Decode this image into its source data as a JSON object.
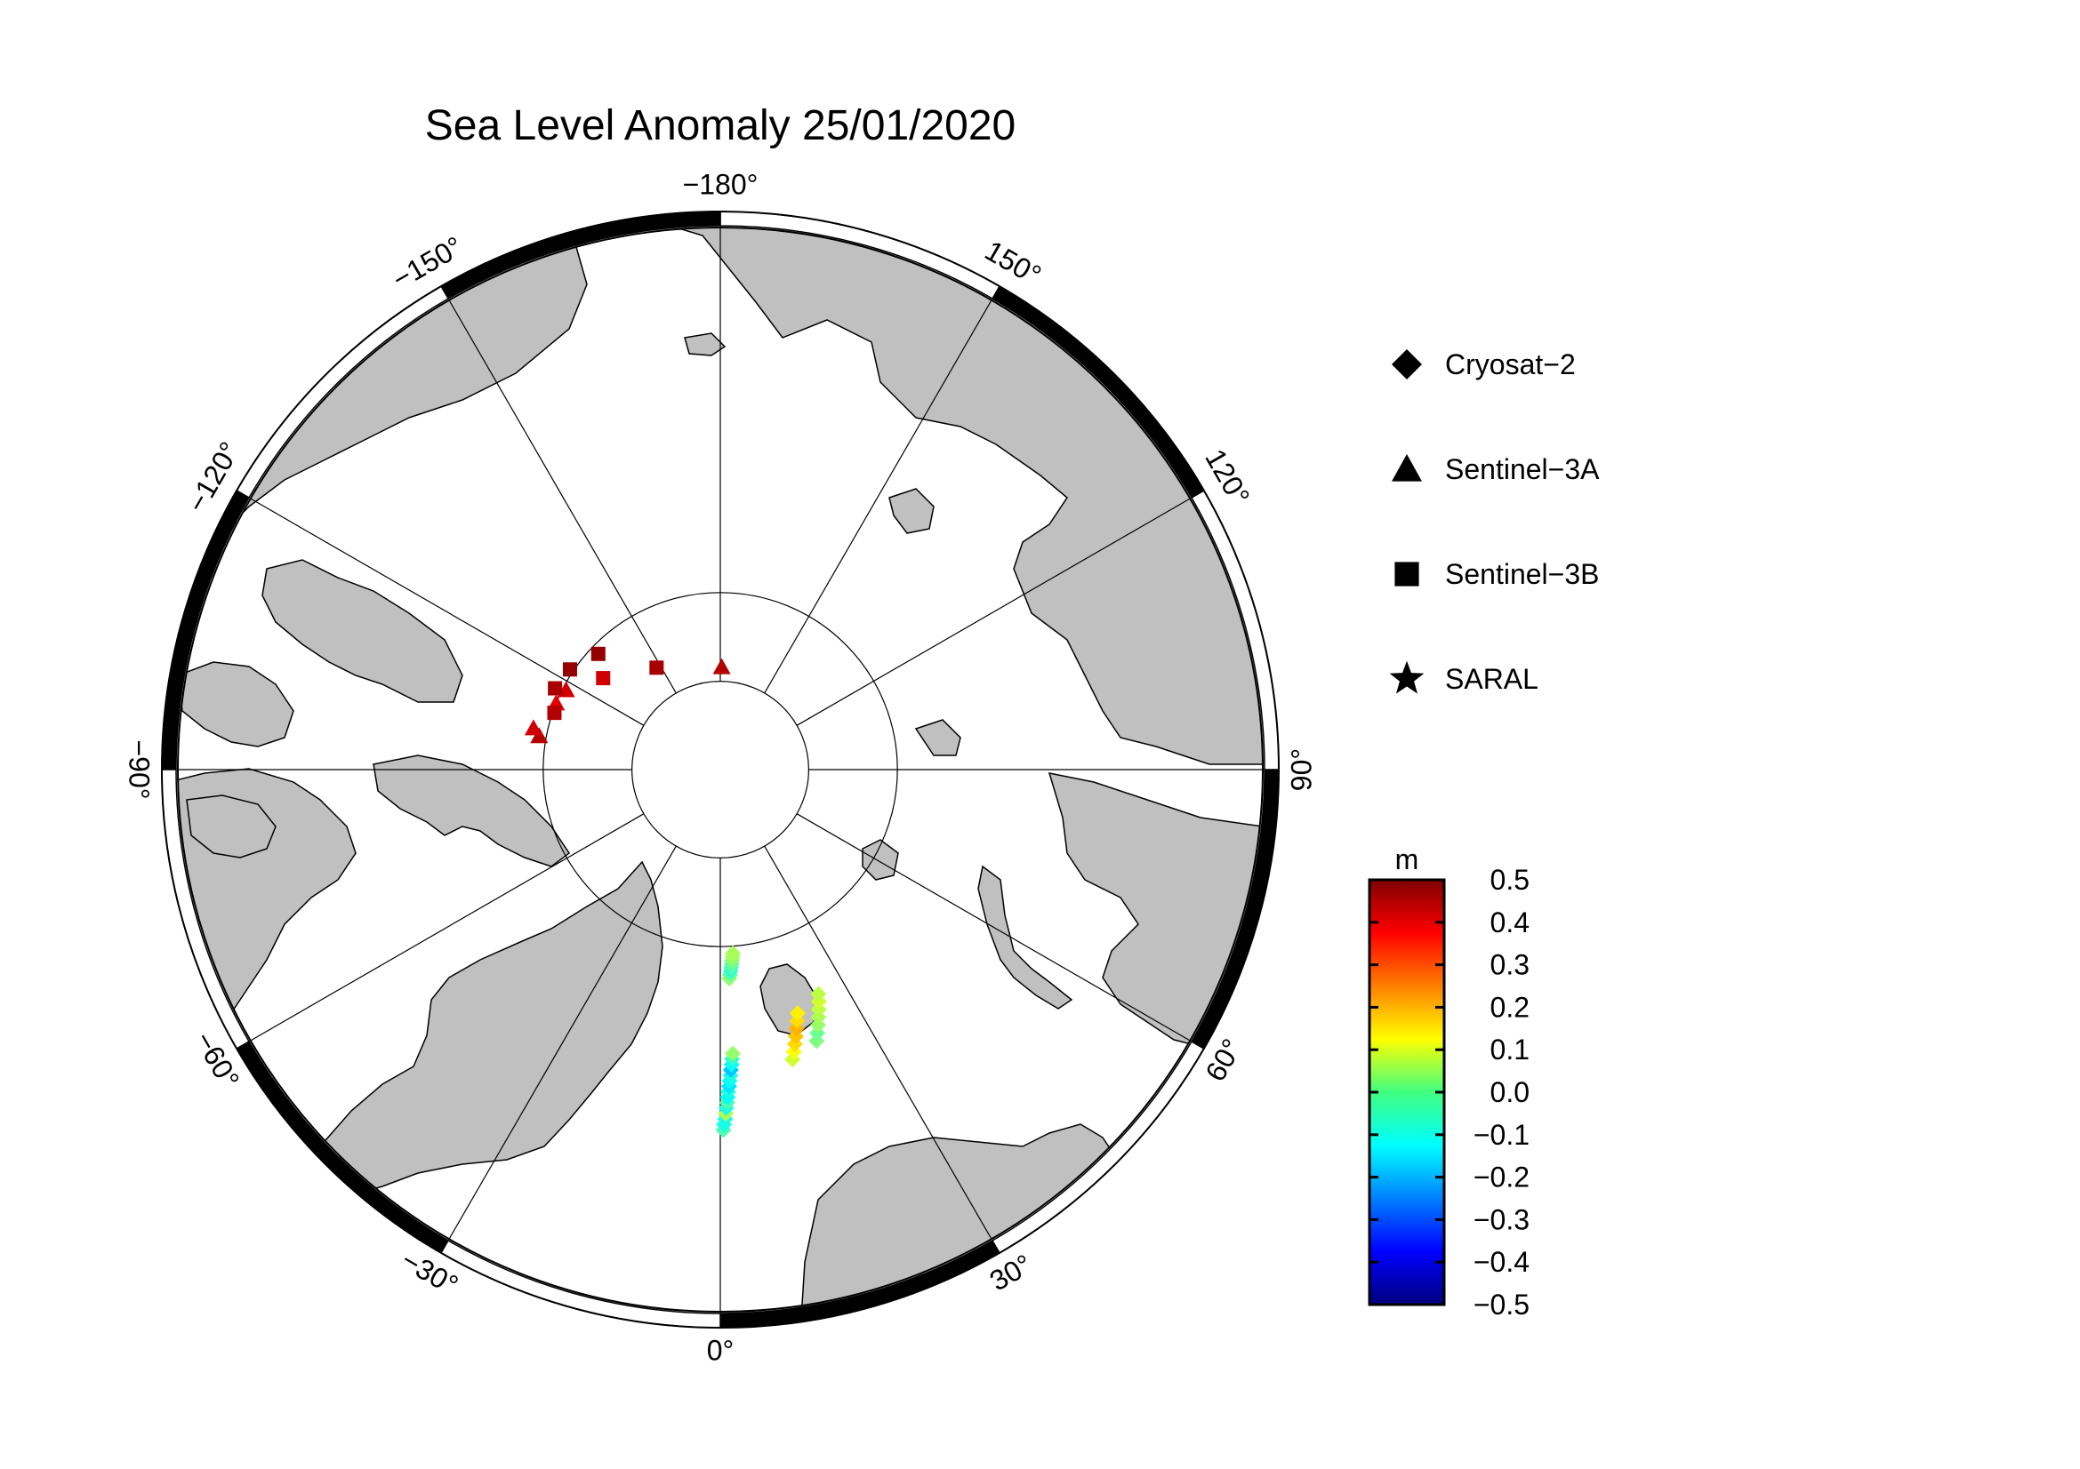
{
  "title": "Sea Level Anomaly 25/01/2020",
  "colors": {
    "land": "#c0c0c0",
    "coast": "#000000",
    "graticule": "#000000",
    "frame_dark": "#000000",
    "frame_light": "#ffffff"
  },
  "map": {
    "projection": "north-polar-stereographic",
    "longitude_labels": [
      {
        "lon": 0,
        "text": "0°"
      },
      {
        "lon": 30,
        "text": "30°"
      },
      {
        "lon": 60,
        "text": "60°"
      },
      {
        "lon": 90,
        "text": "90°"
      },
      {
        "lon": 120,
        "text": "120°"
      },
      {
        "lon": 150,
        "text": "150°"
      },
      {
        "lon": 180,
        "text": "−180°"
      },
      {
        "lon": -150,
        "text": "−150°"
      },
      {
        "lon": -120,
        "text": "−120°"
      },
      {
        "lon": -90,
        "text": "−90°"
      },
      {
        "lon": -60,
        "text": "−60°"
      },
      {
        "lon": -30,
        "text": "−30°"
      }
    ],
    "latitude_circles": [
      80,
      85
    ]
  },
  "legend": {
    "items": [
      {
        "symbol": "diamond-icon",
        "label": "Cryosat−2"
      },
      {
        "symbol": "triangle-icon",
        "label": "Sentinel−3A"
      },
      {
        "symbol": "square-icon",
        "label": "Sentinel−3B"
      },
      {
        "symbol": "star-icon",
        "label": "SARAL"
      }
    ]
  },
  "colorbar": {
    "unit": "m",
    "min": -0.5,
    "max": 0.5,
    "tick_labels": [
      "0.5",
      "0.4",
      "0.3",
      "0.2",
      "0.1",
      "0.0",
      "−0.1",
      "−0.2",
      "−0.3",
      "−0.4",
      "−0.5"
    ],
    "colormap": "jet"
  },
  "chart_data": {
    "type": "scatter",
    "value_unit": "m",
    "series": [
      {
        "name": "Cryosat−2",
        "marker": "diamond",
        "tracks": [
          {
            "lon": [
              0.5,
              0.6,
              0.8,
              0.9,
              1.0,
              1.2,
              1.3,
              1.4,
              1.6,
              1.7,
              1.9,
              2.0,
              2.2,
              2.3,
              2.5
            ],
            "lat": [
              69.8,
              70.1,
              70.4,
              70.7,
              71.0,
              71.3,
              71.6,
              71.9,
              72.2,
              72.5,
              72.8,
              73.1,
              73.4,
              73.7,
              74.0
            ],
            "sla": [
              -0.05,
              -0.1,
              -0.1,
              0.05,
              -0.1,
              -0.05,
              -0.12,
              -0.1,
              -0.15,
              -0.12,
              -0.1,
              -0.18,
              -0.12,
              -0.08,
              0.02
            ]
          },
          {
            "lon": [
              2.5,
              2.7,
              2.9,
              3.1,
              3.3,
              3.5,
              3.7,
              3.9
            ],
            "lat": [
              78.2,
              78.4,
              78.6,
              78.8,
              79.0,
              79.2,
              79.4,
              79.6
            ],
            "sla": [
              0.02,
              -0.02,
              -0.08,
              -0.06,
              -0.03,
              0.0,
              0.03,
              0.04
            ]
          },
          {
            "lon": [
              14.0,
              14.6,
              15.2,
              15.8,
              16.4,
              17.0,
              17.6
            ],
            "lat": [
              73.2,
              73.6,
              74.0,
              74.4,
              74.8,
              75.2,
              75.6
            ],
            "sla": [
              0.08,
              0.12,
              0.16,
              0.18,
              0.2,
              0.16,
              0.14
            ]
          },
          {
            "lon": [
              19.5,
              20.2,
              20.9,
              21.6,
              22.3,
              23.0,
              23.6
            ],
            "lat": [
              73.8,
              74.2,
              74.6,
              75.0,
              75.4,
              75.8,
              76.2
            ],
            "sla": [
              0.0,
              -0.02,
              0.02,
              0.04,
              0.06,
              0.08,
              0.06
            ]
          }
        ]
      },
      {
        "name": "Sentinel−3A",
        "marker": "triangle",
        "points": [
          {
            "lon": -100.5,
            "lat": 79.6,
            "sla": 0.45
          },
          {
            "lon": -102.5,
            "lat": 79.2,
            "sla": 0.42
          },
          {
            "lon": -112.0,
            "lat": 80.0,
            "sla": 0.4
          },
          {
            "lon": -117.3,
            "lat": 80.2,
            "sla": 0.42
          },
          {
            "lon": 179.2,
            "lat": 84.2,
            "sla": 0.45
          }
        ]
      },
      {
        "name": "Sentinel−3B",
        "marker": "square",
        "points": [
          {
            "lon": -108.9,
            "lat": 80.1,
            "sla": 0.45
          },
          {
            "lon": -116.2,
            "lat": 79.6,
            "sla": 0.46
          },
          {
            "lon": -123.7,
            "lat": 79.8,
            "sla": 0.48
          },
          {
            "lon": -128.0,
            "lat": 81.6,
            "sla": 0.42
          },
          {
            "lon": -133.5,
            "lat": 80.5,
            "sla": 0.48
          },
          {
            "lon": -148.0,
            "lat": 83.2,
            "sla": 0.46
          }
        ]
      },
      {
        "name": "SARAL",
        "marker": "star",
        "points": []
      }
    ]
  }
}
